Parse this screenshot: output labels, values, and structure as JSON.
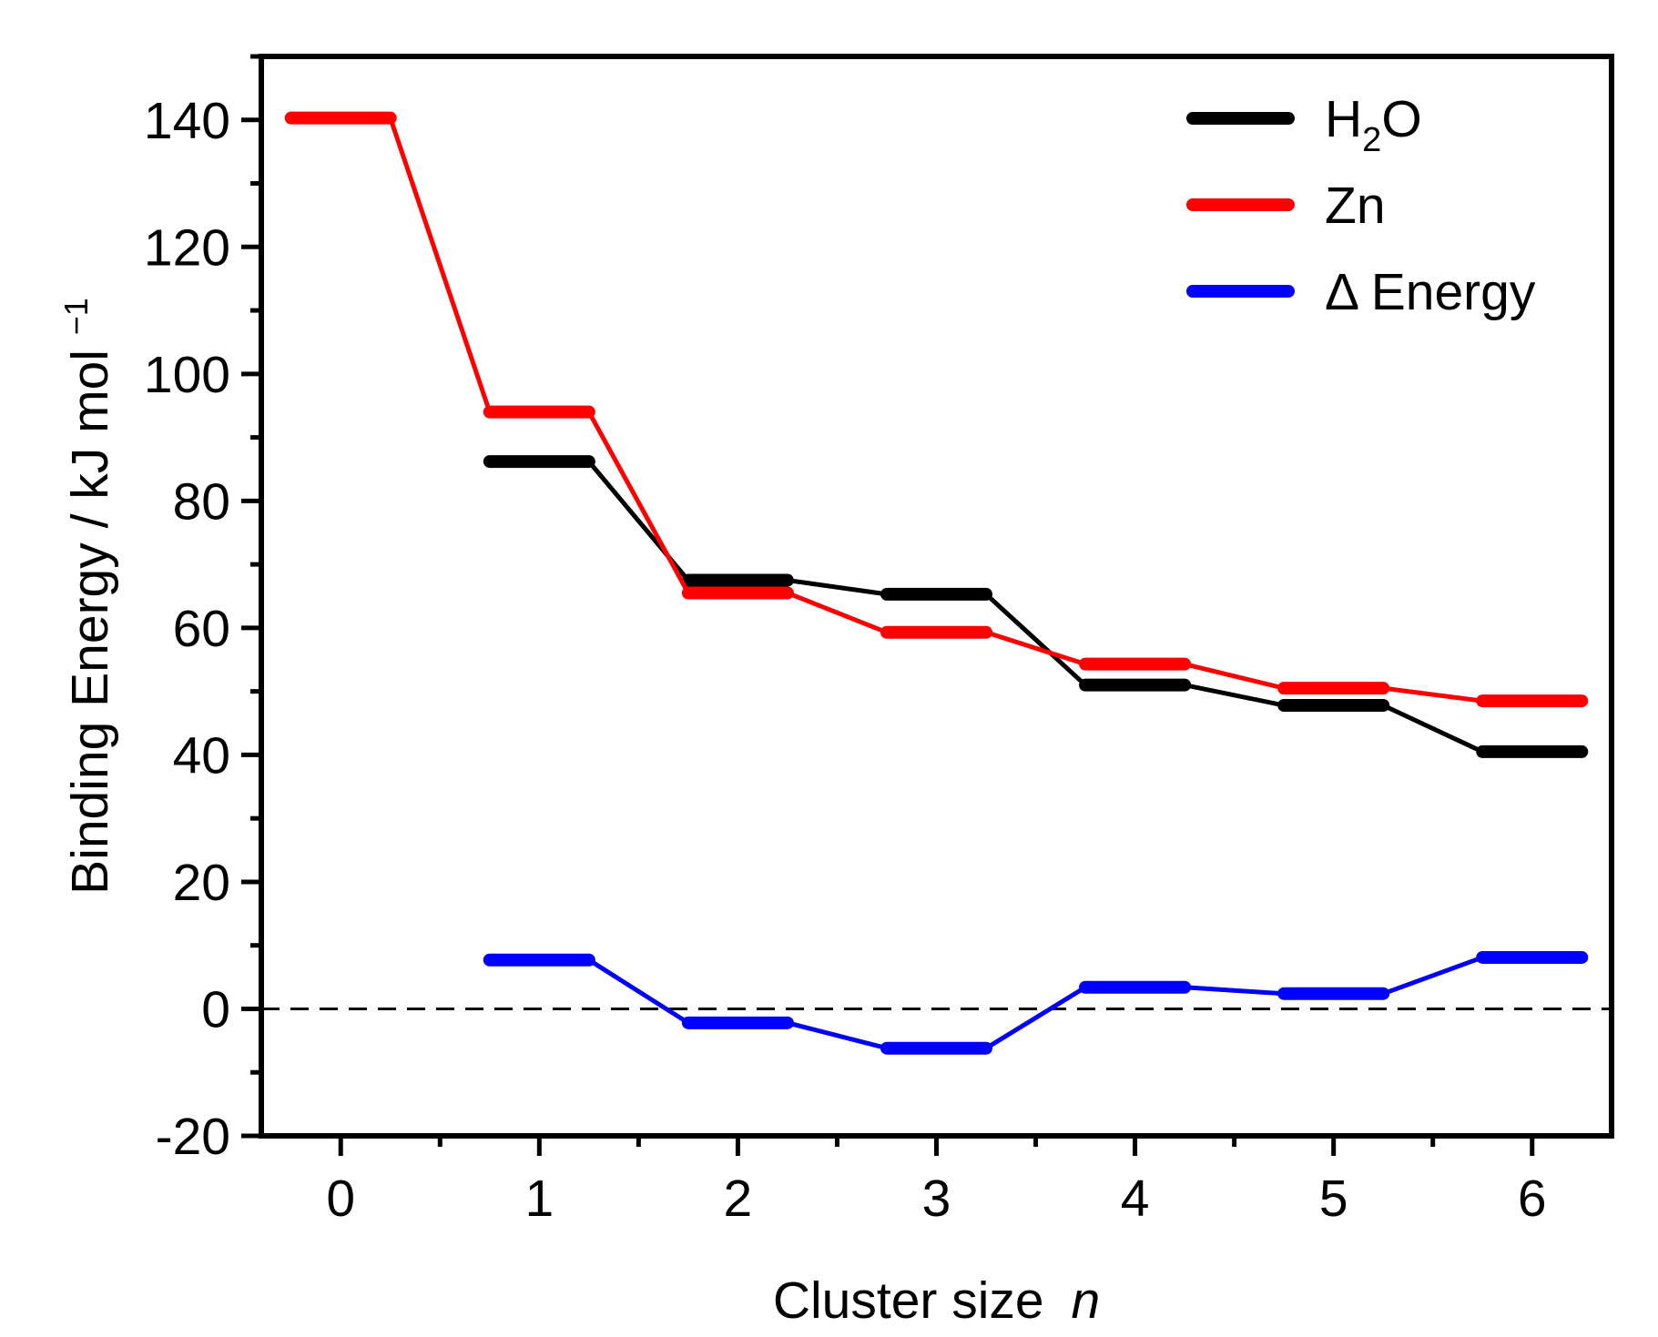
{
  "chart_data": {
    "type": "line",
    "style": "step-connected",
    "xlabel": "Cluster size",
    "xlabel_var": "n",
    "ylabel": "Binding Energy / kJ mol",
    "ylabel_sup": "−1",
    "xlim": [
      -0.4,
      6.4
    ],
    "ylim": [
      -20,
      150
    ],
    "x_ticks": [
      0,
      1,
      2,
      3,
      4,
      5,
      6
    ],
    "x_tick_labels": [
      "0",
      "1",
      "2",
      "3",
      "4",
      "5",
      "6"
    ],
    "y_ticks": [
      -20,
      0,
      20,
      40,
      60,
      80,
      100,
      120,
      140
    ],
    "y_tick_labels": [
      "-20",
      "0",
      "20",
      "40",
      "60",
      "80",
      "100",
      "120",
      "140"
    ],
    "y_minor_step": 10,
    "step_half_width": 0.25,
    "zero_line": {
      "y": 0,
      "style": "dashed",
      "color": "#000000"
    },
    "legend_position": "top-right",
    "series": [
      {
        "name": "H2O",
        "label_main": "H",
        "label_sub": "2",
        "label_tail": "O",
        "color": "#000000",
        "x": [
          1,
          2,
          3,
          4,
          5,
          6
        ],
        "values": [
          86.2,
          67.5,
          65.3,
          51.0,
          47.8,
          40.5
        ]
      },
      {
        "name": "Zn",
        "label_main": "Zn",
        "label_sub": "",
        "label_tail": "",
        "color": "#ff0000",
        "x": [
          0,
          1,
          2,
          3,
          4,
          5,
          6
        ],
        "values": [
          140.3,
          94.0,
          65.5,
          59.3,
          54.3,
          50.5,
          48.5
        ]
      },
      {
        "name": "Δ Energy",
        "label_main": "Δ Energy",
        "label_sub": "",
        "label_tail": "",
        "color": "#0000ff",
        "x": [
          1,
          2,
          3,
          4,
          5,
          6
        ],
        "values": [
          7.7,
          -2.2,
          -6.2,
          3.4,
          2.4,
          8.1
        ]
      }
    ]
  }
}
